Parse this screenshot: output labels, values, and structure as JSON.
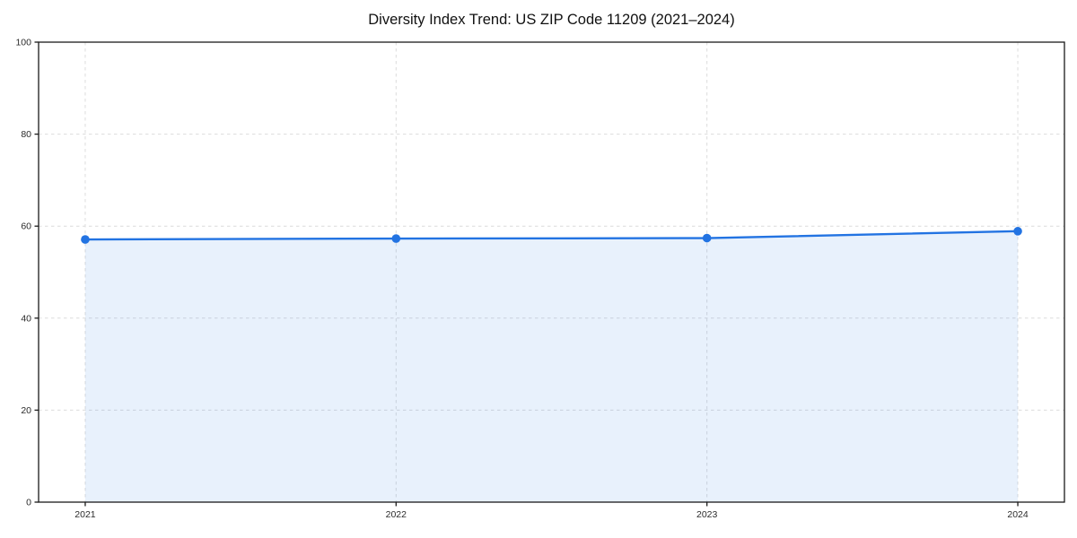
{
  "page": {
    "background": "#ffffff"
  },
  "chart_data": {
    "type": "line",
    "title": "Diversity Index Trend: US ZIP Code 11209 (2021–2024)",
    "categories": [
      "2021",
      "2022",
      "2023",
      "2024"
    ],
    "series": [
      {
        "name": "Diversity Index",
        "values": [
          57.1,
          57.3,
          57.4,
          58.9
        ]
      }
    ],
    "xlabel": "",
    "ylabel": "",
    "ylim": [
      0,
      100
    ],
    "yticks": [
      0,
      20,
      40,
      60,
      80,
      100
    ],
    "grid": true,
    "grid_style": "dashed",
    "legend": "none",
    "area_fill": true,
    "marker": "circle",
    "colors": {
      "line": "#2273e2",
      "marker": "#2273e2",
      "area_fill": "#2273e2",
      "area_fill_opacity": 0.1,
      "gridline": "#dcdcdc",
      "axis": "#1a1a1a",
      "tick_label": "#2b2b2b",
      "title": "#111111",
      "background": "#ffffff"
    }
  }
}
